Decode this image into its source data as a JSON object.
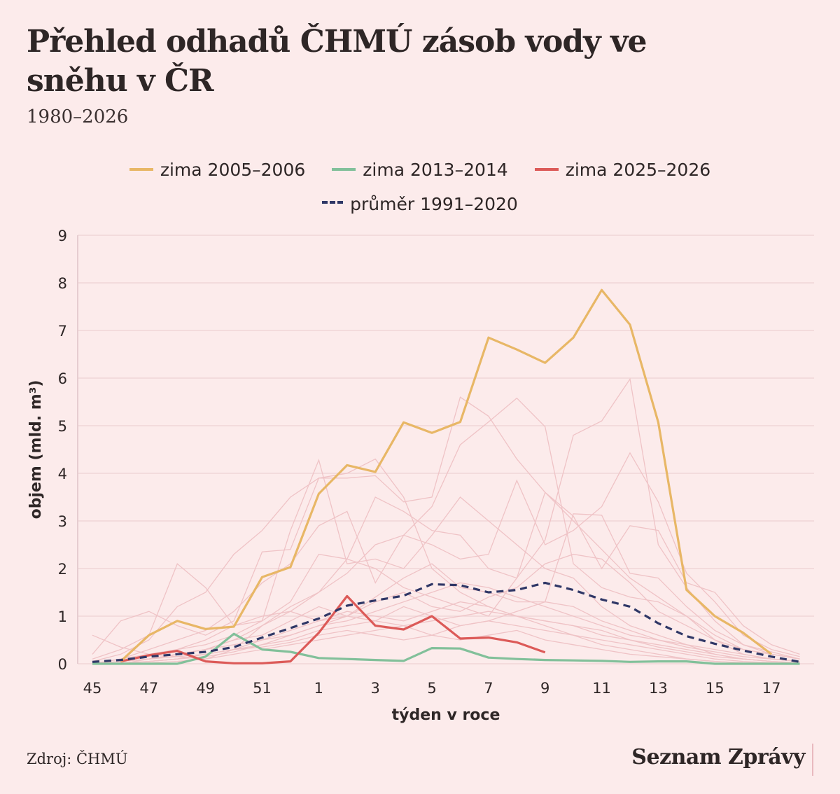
{
  "header": {
    "title": "Přehled odhadů ČHMÚ zásob vody ve sněhu v ČR",
    "subtitle": "1980–2026"
  },
  "legend": {
    "items": [
      {
        "label": "zima 2005–2006",
        "color": "#e8b766",
        "style": "solid"
      },
      {
        "label": "zima 2013–2014",
        "color": "#82c09a",
        "style": "solid"
      },
      {
        "label": "zima 2025–2026",
        "color": "#dc5a58",
        "style": "solid"
      },
      {
        "label": "průměr 1991–2020",
        "color": "#2f3766",
        "style": "dashed"
      }
    ]
  },
  "footer": {
    "source": "Zdroj: ČHMÚ",
    "brand": "Seznam Zprávy"
  },
  "chart_data": {
    "type": "line",
    "title": "Přehled odhadů ČHMÚ zásob vody ve sněhu v ČR",
    "subtitle": "1980–2026",
    "xlabel": "týden v roce",
    "ylabel": "objem (mld. m³)",
    "ylim": [
      0,
      9
    ],
    "yticks": [
      "0",
      "1",
      "2",
      "3",
      "4",
      "5",
      "6",
      "7",
      "8",
      "9"
    ],
    "grid": true,
    "legend_position": "top-center",
    "x": [
      "45",
      "46",
      "47",
      "48",
      "49",
      "50",
      "51",
      "52",
      "1",
      "2",
      "3",
      "4",
      "5",
      "6",
      "7",
      "8",
      "9",
      "10",
      "11",
      "12",
      "13",
      "14",
      "15",
      "16",
      "17",
      "18"
    ],
    "xticks": [
      "45",
      "47",
      "49",
      "51",
      "1",
      "3",
      "5",
      "7",
      "9",
      "11",
      "13",
      "15",
      "17"
    ],
    "background_series_color": "#efc3c6",
    "background_series_note": "winters 1980–2026 (unlabeled, faint)",
    "background_series": [
      [
        0.6,
        0.35,
        0.2,
        0.15,
        0.1,
        0.3,
        0.8,
        1.1,
        0.9,
        1.0,
        0.9,
        0.8,
        0.6,
        0.5,
        0.6,
        0.7,
        0.5,
        0.4,
        0.3,
        0.2,
        0.15,
        0.1,
        0.05,
        0.02,
        0.01,
        0.0
      ],
      [
        0.2,
        0.9,
        1.1,
        0.8,
        0.6,
        0.9,
        2.35,
        2.4,
        3.9,
        4.0,
        4.3,
        3.5,
        2.0,
        1.5,
        1.2,
        1.0,
        0.8,
        0.6,
        0.4,
        0.3,
        0.2,
        0.1,
        0.05,
        0.02,
        0.01,
        0.0
      ],
      [
        0.1,
        0.3,
        0.6,
        2.1,
        1.6,
        0.8,
        0.9,
        2.8,
        4.28,
        2.1,
        2.2,
        2.0,
        2.7,
        3.5,
        3.0,
        2.5,
        2.0,
        1.8,
        1.2,
        0.8,
        0.6,
        0.4,
        0.2,
        0.1,
        0.05,
        0.0
      ],
      [
        0.05,
        0.2,
        0.5,
        1.2,
        1.5,
        2.3,
        2.8,
        3.5,
        3.9,
        3.9,
        3.95,
        3.4,
        3.5,
        5.6,
        5.2,
        4.3,
        3.6,
        3.0,
        2.4,
        1.8,
        1.4,
        1.0,
        0.5,
        0.2,
        0.1,
        0.05
      ],
      [
        0.0,
        0.1,
        0.3,
        0.5,
        0.7,
        1.1,
        1.7,
        2.1,
        2.9,
        3.2,
        1.7,
        2.7,
        3.3,
        4.6,
        5.08,
        5.58,
        4.98,
        2.1,
        1.6,
        1.4,
        1.3,
        1.0,
        0.6,
        0.3,
        0.2,
        0.1
      ],
      [
        0.0,
        0.1,
        0.2,
        0.3,
        0.4,
        0.6,
        0.9,
        1.3,
        2.3,
        2.2,
        3.5,
        3.2,
        2.8,
        2.7,
        2.0,
        1.8,
        2.6,
        4.8,
        5.1,
        5.98,
        2.5,
        1.6,
        0.9,
        0.4,
        0.2,
        0.1
      ],
      [
        0.0,
        0.05,
        0.1,
        0.2,
        0.3,
        0.5,
        0.8,
        1.2,
        1.5,
        1.9,
        2.5,
        2.7,
        2.5,
        2.2,
        2.3,
        3.85,
        2.5,
        2.8,
        3.3,
        4.43,
        3.4,
        1.9,
        1.3,
        0.6,
        0.3,
        0.15
      ],
      [
        0.0,
        0.05,
        0.15,
        0.3,
        0.5,
        0.8,
        1.0,
        1.1,
        1.5,
        2.2,
        2.0,
        1.6,
        1.4,
        1.2,
        1.0,
        1.8,
        3.6,
        3.1,
        2.0,
        2.9,
        2.8,
        1.7,
        1.5,
        0.8,
        0.4,
        0.2
      ],
      [
        0.0,
        0.0,
        0.1,
        0.2,
        0.3,
        0.5,
        0.6,
        0.9,
        1.2,
        1.0,
        1.4,
        1.8,
        2.1,
        1.6,
        1.5,
        1.3,
        1.3,
        3.15,
        3.12,
        1.9,
        1.8,
        1.2,
        0.7,
        0.4,
        0.25,
        0.1
      ],
      [
        0.0,
        0.0,
        0.05,
        0.1,
        0.2,
        0.3,
        0.4,
        0.6,
        0.8,
        1.0,
        1.3,
        1.5,
        1.2,
        1.1,
        1.4,
        1.6,
        2.1,
        2.3,
        2.2,
        1.7,
        1.1,
        0.8,
        0.5,
        0.3,
        0.2,
        0.1
      ],
      [
        0.0,
        0.05,
        0.1,
        0.15,
        0.2,
        0.3,
        0.5,
        0.7,
        0.9,
        1.1,
        1.0,
        0.9,
        1.1,
        1.3,
        1.2,
        1.0,
        0.9,
        0.8,
        0.6,
        0.5,
        0.4,
        0.3,
        0.2,
        0.1,
        0.05,
        0.02
      ],
      [
        0.0,
        0.0,
        0.05,
        0.1,
        0.15,
        0.25,
        0.4,
        0.5,
        0.7,
        0.8,
        0.9,
        1.2,
        1.0,
        0.8,
        0.9,
        1.1,
        1.3,
        1.2,
        0.9,
        0.7,
        0.5,
        0.35,
        0.25,
        0.15,
        0.1,
        0.05
      ],
      [
        0.0,
        0.02,
        0.05,
        0.1,
        0.2,
        0.3,
        0.35,
        0.45,
        0.6,
        0.7,
        0.6,
        0.5,
        0.6,
        0.8,
        0.9,
        0.8,
        0.7,
        0.6,
        0.5,
        0.4,
        0.3,
        0.2,
        0.1,
        0.05,
        0.02,
        0.0
      ],
      [
        0.0,
        0.05,
        0.1,
        0.2,
        0.3,
        0.4,
        0.5,
        0.6,
        0.8,
        0.9,
        1.1,
        1.3,
        1.5,
        1.7,
        1.6,
        1.4,
        1.2,
        1.0,
        0.8,
        0.6,
        0.5,
        0.4,
        0.3,
        0.2,
        0.1,
        0.05
      ],
      [
        0.0,
        0.0,
        0.02,
        0.05,
        0.1,
        0.2,
        0.3,
        0.4,
        0.5,
        0.6,
        0.7,
        0.8,
        0.9,
        1.0,
        1.1,
        1.0,
        0.9,
        0.8,
        0.7,
        0.5,
        0.35,
        0.25,
        0.15,
        0.1,
        0.05,
        0.02
      ]
    ],
    "series": [
      {
        "name": "zima 2005–2006",
        "color": "#e8b766",
        "style": "solid",
        "values": [
          null,
          0.05,
          0.6,
          0.9,
          0.73,
          0.78,
          1.82,
          2.03,
          3.57,
          4.17,
          4.03,
          5.07,
          4.85,
          5.08,
          6.85,
          6.6,
          6.32,
          6.85,
          7.85,
          7.12,
          5.07,
          1.55,
          1.0,
          0.65,
          0.2,
          null
        ]
      },
      {
        "name": "zima 2013–2014",
        "color": "#82c09a",
        "style": "solid",
        "values": [
          0.0,
          0.0,
          0.0,
          0.0,
          0.15,
          0.63,
          0.3,
          0.25,
          0.12,
          0.1,
          0.08,
          0.06,
          0.33,
          0.32,
          0.13,
          0.1,
          0.08,
          0.07,
          0.06,
          0.04,
          0.05,
          0.05,
          0.0,
          0.0,
          0.0,
          0.0
        ]
      },
      {
        "name": "zima 2025–2026",
        "color": "#dc5a58",
        "style": "solid",
        "values": [
          null,
          0.05,
          0.18,
          0.27,
          0.05,
          0.01,
          0.01,
          0.05,
          0.65,
          1.42,
          0.8,
          0.72,
          1.0,
          0.53,
          0.55,
          0.45,
          0.24,
          null,
          null,
          null,
          null,
          null,
          null,
          null,
          null,
          null
        ]
      },
      {
        "name": "průměr 1991–2020",
        "color": "#2f3766",
        "style": "dashed",
        "values": [
          0.04,
          0.08,
          0.15,
          0.2,
          0.25,
          0.35,
          0.55,
          0.75,
          0.95,
          1.22,
          1.33,
          1.43,
          1.67,
          1.65,
          1.5,
          1.55,
          1.7,
          1.55,
          1.35,
          1.2,
          0.85,
          0.58,
          0.42,
          0.28,
          0.15,
          0.04
        ]
      }
    ]
  }
}
